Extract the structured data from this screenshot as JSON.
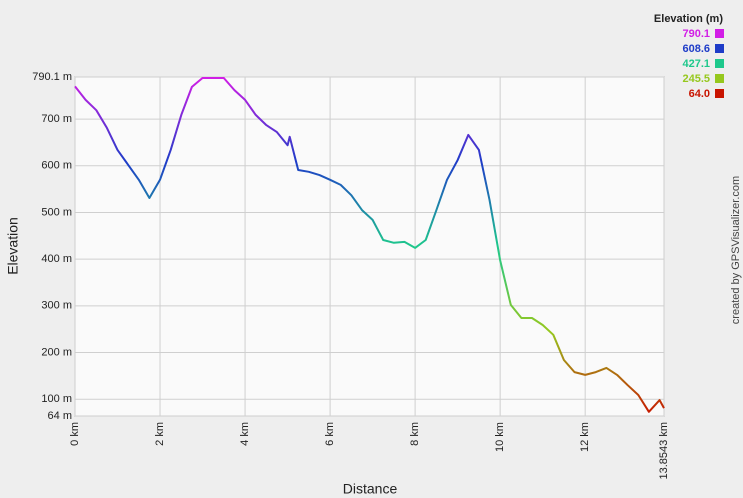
{
  "chart_data": {
    "type": "line",
    "xlabel": "Distance",
    "ylabel": "Elevation",
    "credit": "created by GPSVisualizer.com",
    "x": [
      0,
      0.25,
      0.5,
      0.75,
      1.0,
      1.25,
      1.5,
      1.75,
      2.0,
      2.25,
      2.5,
      2.75,
      3.0,
      3.25,
      3.5,
      3.75,
      4.0,
      4.25,
      4.5,
      4.75,
      5.0,
      5.05,
      5.25,
      5.5,
      5.75,
      6.0,
      6.25,
      6.5,
      6.75,
      7.0,
      7.25,
      7.5,
      7.75,
      8.0,
      8.25,
      8.5,
      8.75,
      9.0,
      9.25,
      9.5,
      9.75,
      10.0,
      10.25,
      10.5,
      10.75,
      11.0,
      11.25,
      11.5,
      11.75,
      12.0,
      12.25,
      12.5,
      12.75,
      13.0,
      13.25,
      13.5,
      13.75,
      13.8543
    ],
    "values": [
      770,
      741,
      719,
      681,
      634,
      602,
      570,
      531,
      570,
      634,
      709,
      769,
      788,
      788,
      788,
      762,
      741,
      709,
      687,
      672,
      644,
      662,
      591,
      587,
      580,
      570,
      559,
      537,
      505,
      484,
      441,
      435,
      437,
      424,
      441,
      505,
      570,
      612,
      666,
      634,
      527,
      398,
      302,
      274,
      274,
      259,
      238,
      184,
      158,
      152,
      158,
      167,
      152,
      130,
      109,
      73,
      98,
      81
    ],
    "xlim": [
      0,
      13.8543
    ],
    "ylim": [
      64,
      790.1
    ],
    "xticks": [
      {
        "value": 0,
        "label": "0 km"
      },
      {
        "value": 2,
        "label": "2 km"
      },
      {
        "value": 4,
        "label": "4 km"
      },
      {
        "value": 6,
        "label": "6 km"
      },
      {
        "value": 8,
        "label": "8 km"
      },
      {
        "value": 10,
        "label": "10 km"
      },
      {
        "value": 12,
        "label": "12 km"
      },
      {
        "value": 13.8543,
        "label": "13.8543 km"
      }
    ],
    "yticks": [
      {
        "value": 64,
        "label": "64 m"
      },
      {
        "value": 100,
        "label": "100 m"
      },
      {
        "value": 200,
        "label": "200 m"
      },
      {
        "value": 300,
        "label": "300 m"
      },
      {
        "value": 400,
        "label": "400 m"
      },
      {
        "value": 500,
        "label": "500 m"
      },
      {
        "value": 600,
        "label": "600 m"
      },
      {
        "value": 700,
        "label": "700 m"
      },
      {
        "value": 790.1,
        "label": "790.1 m"
      }
    ],
    "grid": true,
    "color_scale": {
      "title": "Elevation (m)",
      "stops": [
        790.1,
        608.6,
        427.1,
        245.5,
        {
          "value": 64,
          "label": "64.0"
        }
      ],
      "colors": [
        "#d21ee6",
        "#1e3cc8",
        "#1ec88c",
        "#96c81e",
        "#c81400"
      ]
    }
  }
}
